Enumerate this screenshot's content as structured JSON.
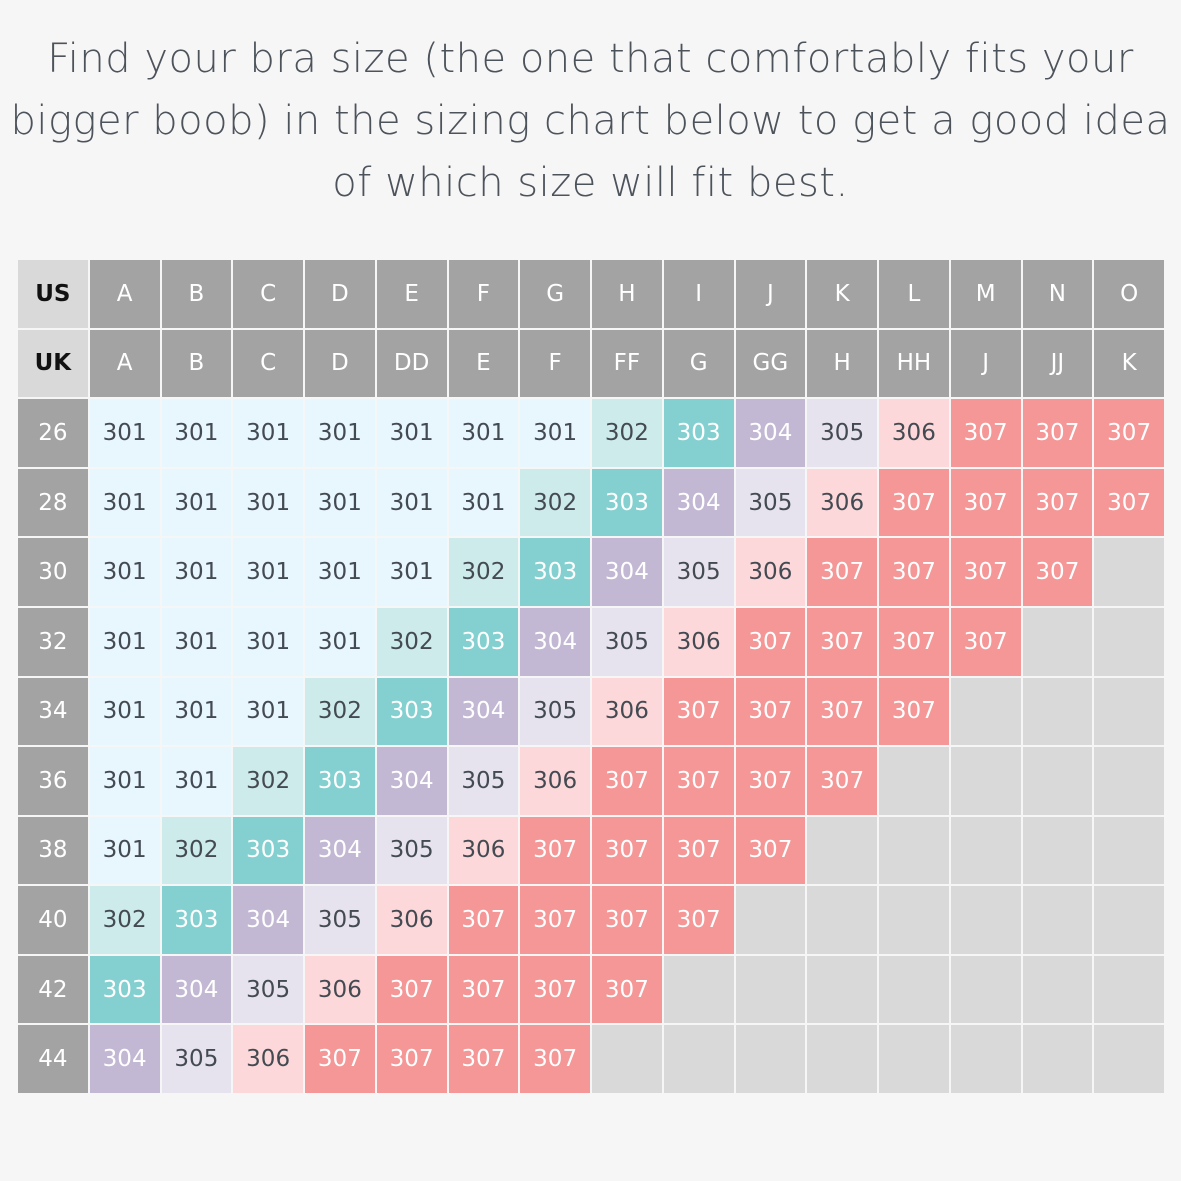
{
  "title": "Find your bra size (the one that comfortably fits your bigger boob) in the sizing chart below to get a good idea of which size will fit best.",
  "chart_data": {
    "type": "table",
    "row_header_labels": [
      "US",
      "UK"
    ],
    "us_cups": [
      "A",
      "B",
      "C",
      "D",
      "E",
      "F",
      "G",
      "H",
      "I",
      "J",
      "K",
      "L",
      "M",
      "N",
      "O"
    ],
    "uk_cups": [
      "A",
      "B",
      "C",
      "D",
      "DD",
      "E",
      "F",
      "FF",
      "G",
      "GG",
      "H",
      "HH",
      "J",
      "JJ",
      "K"
    ],
    "bands": [
      "26",
      "28",
      "30",
      "32",
      "34",
      "36",
      "38",
      "40",
      "42",
      "44"
    ],
    "values": [
      [
        "301",
        "301",
        "301",
        "301",
        "301",
        "301",
        "301",
        "302",
        "303",
        "304",
        "305",
        "306",
        "307",
        "307",
        "307"
      ],
      [
        "301",
        "301",
        "301",
        "301",
        "301",
        "301",
        "302",
        "303",
        "304",
        "305",
        "306",
        "307",
        "307",
        "307",
        "307"
      ],
      [
        "301",
        "301",
        "301",
        "301",
        "301",
        "302",
        "303",
        "304",
        "305",
        "306",
        "307",
        "307",
        "307",
        "307",
        ""
      ],
      [
        "301",
        "301",
        "301",
        "301",
        "302",
        "303",
        "304",
        "305",
        "306",
        "307",
        "307",
        "307",
        "307",
        "",
        ""
      ],
      [
        "301",
        "301",
        "301",
        "302",
        "303",
        "304",
        "305",
        "306",
        "307",
        "307",
        "307",
        "307",
        "",
        "",
        ""
      ],
      [
        "301",
        "301",
        "302",
        "303",
        "304",
        "305",
        "306",
        "307",
        "307",
        "307",
        "307",
        "",
        "",
        "",
        ""
      ],
      [
        "301",
        "302",
        "303",
        "304",
        "305",
        "306",
        "307",
        "307",
        "307",
        "307",
        "",
        "",
        "",
        "",
        ""
      ],
      [
        "302",
        "303",
        "304",
        "305",
        "306",
        "307",
        "307",
        "307",
        "307",
        "",
        "",
        "",
        "",
        "",
        ""
      ],
      [
        "303",
        "304",
        "305",
        "306",
        "307",
        "307",
        "307",
        "307",
        "",
        "",
        "",
        "",
        "",
        "",
        ""
      ],
      [
        "304",
        "305",
        "306",
        "307",
        "307",
        "307",
        "307",
        "",
        "",
        "",
        "",
        "",
        "",
        "",
        ""
      ]
    ],
    "size_colors": {
      "301": "#e8f6fd",
      "302": "#cdebeb",
      "303": "#84d0d0",
      "304": "#c3b8d4",
      "305": "#e6e3ee",
      "306": "#fcd8da",
      "307": "#f49796"
    },
    "header_color": "#a3a3a3",
    "empty_color": "#d9d9d9"
  }
}
